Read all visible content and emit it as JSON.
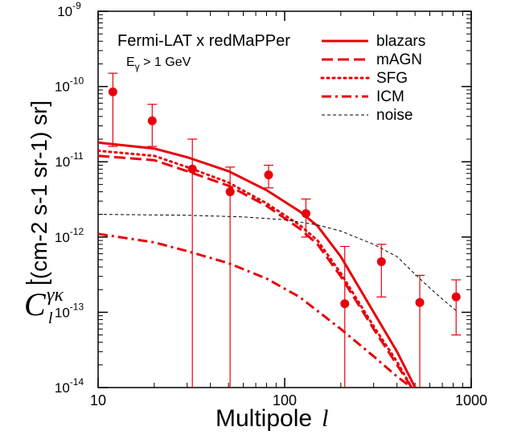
{
  "chart_data": {
    "type": "line",
    "title": "Fermi-LAT x redMaPPer",
    "subtitle": "Eγ > 1 GeV",
    "subtitle_main": "E",
    "subtitle_sub": "γ",
    "subtitle_rest": " > 1 GeV",
    "xlabel": "Multipole",
    "xlabel_symbol": "l",
    "ylabel": "[(cm-2 s-1 sr-1) sr]",
    "ylabel_symbol": "C l γκ",
    "x_scale": "log",
    "y_scale": "log",
    "xlim": [
      10,
      1000
    ],
    "ylim": [
      1e-14,
      1e-09
    ],
    "grid": false,
    "legend_position": "top-right",
    "x_ticks": [
      {
        "value": 10,
        "label": "10"
      },
      {
        "value": 100,
        "label": "100"
      },
      {
        "value": 1000,
        "label": "1000"
      }
    ],
    "y_ticks": [
      {
        "value": 1e-14,
        "base": "10",
        "exp": "-14"
      },
      {
        "value": 1e-13,
        "base": "10",
        "exp": "-13"
      },
      {
        "value": 1e-12,
        "base": "10",
        "exp": "-12"
      },
      {
        "value": 1e-11,
        "base": "10",
        "exp": "-11"
      },
      {
        "value": 1e-10,
        "base": "10",
        "exp": "-10"
      },
      {
        "value": 1e-09,
        "base": "10",
        "exp": "-9"
      }
    ],
    "series": [
      {
        "name": "blazars",
        "style": "solid",
        "color": "#e8000b",
        "x": [
          10,
          20,
          30,
          50,
          80,
          120,
          150,
          200,
          300,
          400,
          500
        ],
        "y": [
          1.8e-11,
          1.5e-11,
          1.15e-11,
          7.5e-12,
          4.2e-12,
          2.2e-12,
          1.4e-12,
          5.5e-13,
          1e-13,
          3e-14,
          1e-14
        ]
      },
      {
        "name": "mAGN",
        "style": "dashed",
        "color": "#e8000b",
        "x": [
          10,
          20,
          30,
          50,
          80,
          120,
          150,
          200,
          300,
          400,
          480
        ],
        "y": [
          1.2e-11,
          1.05e-11,
          7.5e-12,
          4.8e-12,
          2.6e-12,
          1.3e-12,
          8e-13,
          3e-13,
          6e-14,
          2e-14,
          1e-14
        ]
      },
      {
        "name": "SFG",
        "style": "dotted",
        "color": "#e8000b",
        "x": [
          10,
          20,
          30,
          50,
          80,
          120,
          150,
          200,
          300,
          400,
          480
        ],
        "y": [
          1.4e-11,
          1.2e-11,
          8.5e-12,
          5.3e-12,
          2.8e-12,
          1.45e-12,
          9e-13,
          3.3e-13,
          6.5e-14,
          2.2e-14,
          1e-14
        ]
      },
      {
        "name": "ICM",
        "style": "dashdot",
        "color": "#e8000b",
        "x": [
          10,
          20,
          30,
          50,
          80,
          120,
          200,
          300,
          400,
          480
        ],
        "y": [
          1.1e-12,
          8.5e-13,
          6.5e-13,
          4.5e-13,
          2.8e-13,
          1.6e-13,
          6e-14,
          2.6e-14,
          1.4e-14,
          1e-14
        ]
      },
      {
        "name": "noise",
        "style": "thin-dashed",
        "color": "#000000",
        "x": [
          10,
          30,
          60,
          100,
          150,
          200,
          300,
          400,
          500,
          600,
          700,
          850
        ],
        "y": [
          2e-12,
          1.95e-12,
          1.85e-12,
          1.7e-12,
          1.45e-12,
          1.2e-12,
          8e-13,
          5.5e-13,
          3.2e-13,
          2.1e-13,
          1.5e-13,
          1e-13
        ]
      }
    ],
    "points": {
      "name": "data",
      "color": "#e8000b",
      "x": [
        12,
        19.5,
        32,
        51,
        82,
        130,
        210,
        330,
        530,
        830
      ],
      "y": [
        8.5e-11,
        3.5e-11,
        8e-12,
        4e-12,
        6.7e-12,
        2.05e-12,
        1.3e-13,
        4.7e-13,
        1.35e-13,
        1.6e-13
      ],
      "y_err_high": [
        1.5e-10,
        5.8e-11,
        2e-11,
        8.5e-12,
        9e-12,
        3.2e-12,
        7.5e-13,
        8e-13,
        3.1e-13,
        2.7e-13
      ],
      "y_err_low": [
        1.6e-11,
        1.6e-11,
        1e-14,
        1e-14,
        4.5e-12,
        1e-12,
        1e-14,
        1.6e-13,
        1e-14,
        5e-14
      ]
    }
  }
}
